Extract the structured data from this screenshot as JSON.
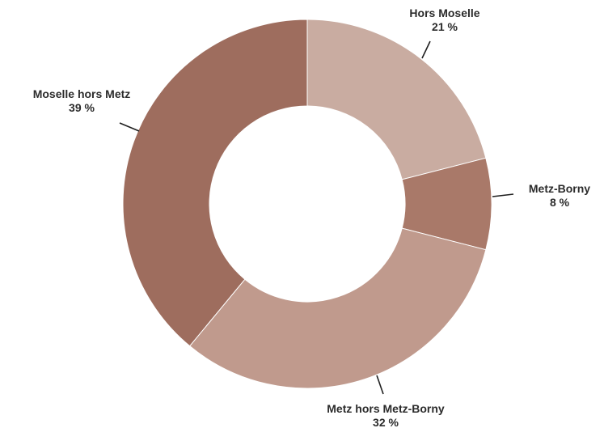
{
  "chart_data": {
    "type": "pie",
    "variant": "donut",
    "slices": [
      {
        "name": "Hors Moselle",
        "value": 21,
        "label": "21 %",
        "color": "#c9aca1"
      },
      {
        "name": "Metz-Borny",
        "value": 8,
        "label": "8 %",
        "color": "#a97969"
      },
      {
        "name": "Metz hors Metz-Borny",
        "value": 32,
        "label": "32 %",
        "color": "#c09a8d"
      },
      {
        "name": "Moselle hors Metz",
        "value": 39,
        "label": "39 %",
        "color": "#9e6d5e"
      }
    ],
    "legend": "none"
  }
}
